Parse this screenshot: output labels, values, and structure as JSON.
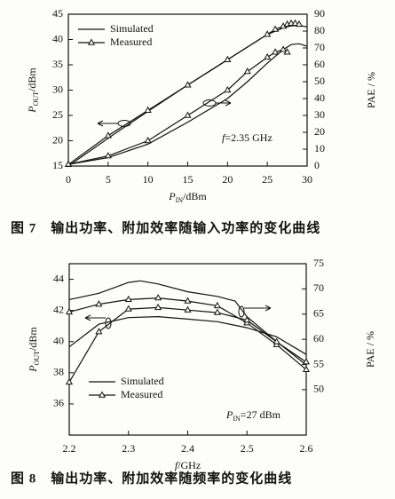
{
  "chart_data": [
    {
      "type": "line",
      "xlabel": [
        "P",
        "IN",
        "/dBm"
      ],
      "ylabel": [
        "P",
        "OUT",
        "/dBm"
      ],
      "y2label": "PAE / %",
      "xlim": [
        0,
        30
      ],
      "xticks": [
        0,
        5,
        10,
        15,
        20,
        25,
        30
      ],
      "ylim": [
        15,
        45
      ],
      "yticks": [
        15,
        20,
        25,
        30,
        35,
        40,
        45
      ],
      "y2lim": [
        0,
        90
      ],
      "y2ticks": [
        0,
        10,
        20,
        30,
        40,
        50,
        60,
        70,
        80,
        90
      ],
      "annotation": [
        "f",
        "=2.35 GHz"
      ],
      "caption": "图 7　输出功率、附加效率随输入功率的变化曲线",
      "legend": "upper left",
      "series": [
        {
          "name": "Simulated",
          "color": "#111111",
          "x": [
            0,
            5,
            10,
            15,
            20,
            25,
            27,
            28,
            29,
            30
          ],
          "values": [
            15,
            20.5,
            25.8,
            31,
            36,
            41,
            42.3,
            42.7,
            42.8,
            42.5
          ]
        },
        {
          "name": "Measured",
          "color": "#111111",
          "marker": "triangle",
          "x": [
            0,
            5,
            10,
            15,
            20,
            25,
            26,
            27,
            27.5,
            28,
            28.5,
            29
          ],
          "values": [
            15.3,
            21,
            26,
            31,
            36,
            41,
            42,
            42.6,
            43,
            43.2,
            43.2,
            43
          ]
        },
        {
          "color": "#111111",
          "axis": "y2",
          "x": [
            0,
            5,
            10,
            15,
            20,
            22.5,
            25,
            27,
            28,
            29,
            30
          ],
          "values": [
            1,
            5,
            13,
            26,
            40,
            50,
            61,
            69,
            72,
            72.5,
            71
          ]
        },
        {
          "color": "#111111",
          "axis": "y2",
          "marker": "triangle",
          "x": [
            0,
            5,
            10,
            15,
            20,
            22.5,
            25,
            26,
            27,
            27.5
          ],
          "values": [
            1,
            6,
            15,
            30,
            45,
            56,
            64.5,
            67.5,
            69,
            67.5
          ]
        }
      ]
    },
    {
      "type": "line",
      "xlabel": [
        "f",
        "/GHz"
      ],
      "ylabel": [
        "P",
        "OUT",
        "/dBm"
      ],
      "y2label": "PAE / %",
      "xlim": [
        2.2,
        2.6
      ],
      "xticks": [
        2.2,
        2.3,
        2.4,
        2.5,
        2.6
      ],
      "ylim": [
        34,
        45
      ],
      "yticks": [
        36,
        38,
        40,
        42,
        44
      ],
      "y2lim": [
        41,
        75
      ],
      "y2ticks": [
        50,
        55,
        60,
        65,
        70,
        75
      ],
      "annotation": [
        "P",
        "IN",
        "=27 dBm"
      ],
      "caption": "图 8　输出功率、附加效率随频率的变化曲线",
      "legend": "lower left",
      "series": [
        {
          "name": "Simulated",
          "color": "#111111",
          "x": [
            2.2,
            2.25,
            2.3,
            2.32,
            2.35,
            2.4,
            2.45,
            2.48,
            2.5,
            2.55,
            2.6
          ],
          "values": [
            42.7,
            43.1,
            43.8,
            43.9,
            43.7,
            43.2,
            42.9,
            42.6,
            41.6,
            40,
            38.5
          ]
        },
        {
          "name": "Measured",
          "color": "#111111",
          "marker": "triangle",
          "x": [
            2.2,
            2.25,
            2.3,
            2.35,
            2.4,
            2.45,
            2.5,
            2.55,
            2.6
          ],
          "values": [
            41.9,
            42.4,
            42.7,
            42.8,
            42.6,
            42.3,
            41.2,
            39.8,
            38.2
          ]
        },
        {
          "color": "#111111",
          "axis": "y2",
          "x": [
            2.2,
            2.25,
            2.3,
            2.35,
            2.4,
            2.45,
            2.5,
            2.55,
            2.6
          ],
          "values": [
            58.5,
            63,
            64.3,
            64.5,
            64,
            63.5,
            62.3,
            60.5,
            57
          ]
        },
        {
          "color": "#111111",
          "axis": "y2",
          "marker": "triangle",
          "x": [
            2.2,
            2.25,
            2.3,
            2.35,
            2.4,
            2.45,
            2.5,
            2.55,
            2.6
          ],
          "values": [
            51.5,
            61.5,
            66,
            66.3,
            65.8,
            65.3,
            63.8,
            59.5,
            55.5
          ]
        }
      ]
    }
  ]
}
